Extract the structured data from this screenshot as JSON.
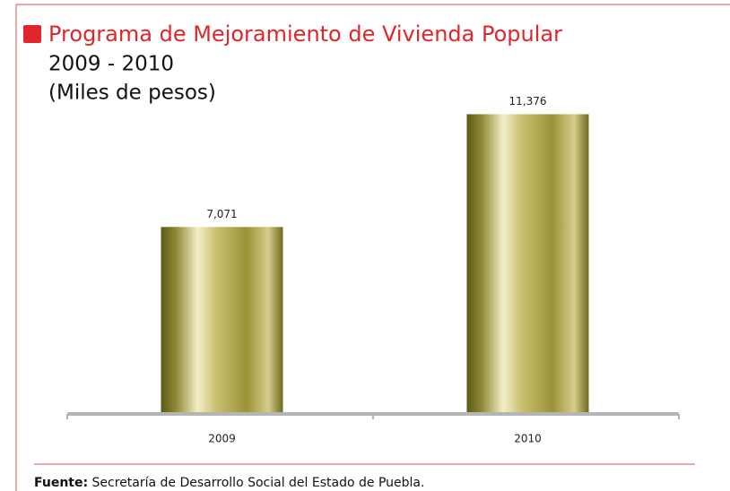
{
  "chart_data": {
    "type": "bar",
    "title": "Programa de Mejoramiento de Vivienda Popular",
    "subtitle": "2009 - 2010",
    "unit_label": "(Miles de pesos)",
    "categories": [
      "2009",
      "2010"
    ],
    "values": [
      7071,
      11376
    ],
    "value_labels": [
      "7,071",
      "11,376"
    ],
    "ylim": [
      0,
      13000
    ],
    "source_label": "Fuente:",
    "source": "Secretaría de Desarrollo Social del Estado de Puebla."
  }
}
